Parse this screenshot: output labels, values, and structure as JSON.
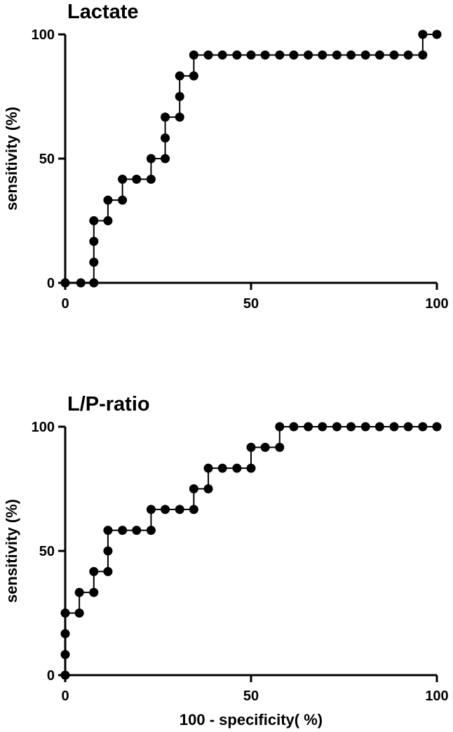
{
  "chart_data": [
    {
      "type": "line",
      "title": "Lactate",
      "xlabel": "",
      "ylabel": "sensitivity (%)",
      "xlim": [
        0,
        100
      ],
      "ylim": [
        0,
        100
      ],
      "xticks": [
        0,
        50,
        100
      ],
      "yticks": [
        0,
        50,
        100
      ],
      "grid": false,
      "step": true,
      "marker_color": "#000000",
      "series": [
        {
          "x": [
            0,
            4.2,
            7.7,
            7.7,
            7.7,
            7.7,
            11.5,
            11.5,
            15.4,
            15.4,
            19.2,
            23.1,
            23.1,
            26.9,
            26.9,
            26.9,
            30.8,
            30.8,
            30.8,
            34.6,
            34.6,
            38.5,
            42.3,
            46.2,
            50,
            53.8,
            57.7,
            61.5,
            65.4,
            69.2,
            73.1,
            76.9,
            80.8,
            84.6,
            88.5,
            92.3,
            96.2,
            96.2,
            100
          ],
          "y": [
            0,
            0,
            0,
            8.3,
            16.7,
            25,
            25,
            33.3,
            33.3,
            41.7,
            41.7,
            41.7,
            50,
            50,
            58.3,
            66.7,
            66.7,
            75,
            83.3,
            83.3,
            91.7,
            91.7,
            91.7,
            91.7,
            91.7,
            91.7,
            91.7,
            91.7,
            91.7,
            91.7,
            91.7,
            91.7,
            91.7,
            91.7,
            91.7,
            91.7,
            91.7,
            100,
            100
          ]
        }
      ]
    },
    {
      "type": "line",
      "title": "L/P-ratio",
      "xlabel": "100 - specificity( %)",
      "ylabel": "sensitivity (%)",
      "xlim": [
        0,
        100
      ],
      "ylim": [
        0,
        100
      ],
      "xticks": [
        0,
        50,
        100
      ],
      "yticks": [
        0,
        50,
        100
      ],
      "grid": false,
      "step": true,
      "marker_color": "#000000",
      "series": [
        {
          "x": [
            0,
            0,
            0,
            0,
            3.8,
            3.8,
            7.7,
            7.7,
            11.5,
            11.5,
            11.5,
            15.4,
            19.2,
            23.1,
            23.1,
            26.9,
            30.8,
            34.6,
            34.6,
            38.5,
            38.5,
            42.3,
            46.2,
            50,
            50,
            53.8,
            57.7,
            57.7,
            61.5,
            65.4,
            69.2,
            73.1,
            76.9,
            80.8,
            84.6,
            88.5,
            92.3,
            96.2,
            100
          ],
          "y": [
            0,
            8.3,
            16.7,
            25,
            25,
            33.3,
            33.3,
            41.7,
            41.7,
            50,
            58.3,
            58.3,
            58.3,
            58.3,
            66.7,
            66.7,
            66.7,
            66.7,
            75,
            75,
            83.3,
            83.3,
            83.3,
            83.3,
            91.7,
            91.7,
            91.7,
            100,
            100,
            100,
            100,
            100,
            100,
            100,
            100,
            100,
            100,
            100,
            100
          ]
        }
      ]
    }
  ]
}
